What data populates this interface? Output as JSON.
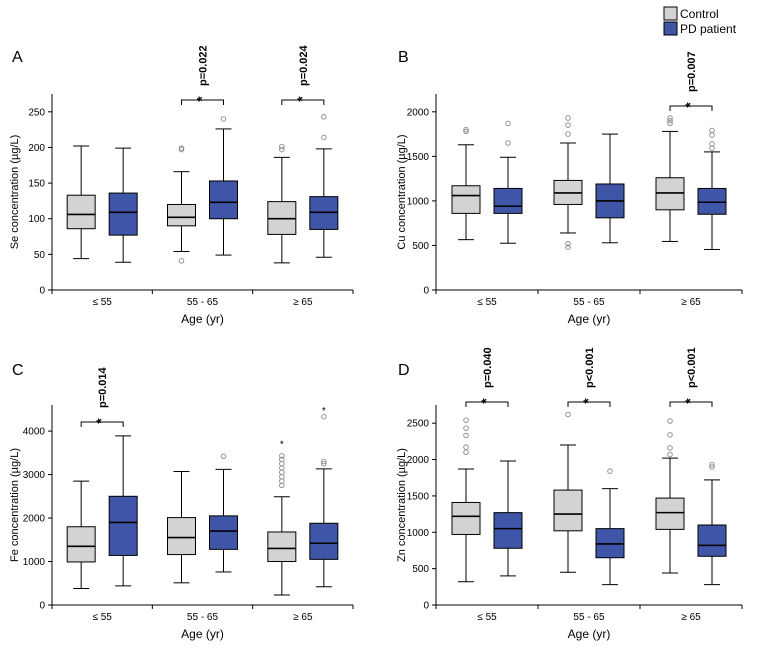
{
  "legend": {
    "items": [
      {
        "label": "Control",
        "color": "#d3d3d3"
      },
      {
        "label": "PD patient",
        "color": "#3f56a8"
      }
    ]
  },
  "colors": {
    "control": "#d3d3d3",
    "patient": "#3f56a8",
    "axis": "#000000",
    "outlier": "#888888"
  },
  "chart_data": [
    {
      "type": "boxplot",
      "panel": "A",
      "ylabel": "Se concentration (µg/L)",
      "xlabel": "Age (yr)",
      "ylim": [
        0,
        275
      ],
      "yticks": [
        0,
        50,
        100,
        150,
        200,
        250
      ],
      "categories": [
        "≤ 55",
        "55 - 65",
        "≥ 65"
      ],
      "series": [
        {
          "name": "Control",
          "boxes": [
            {
              "min": 44,
              "q1": 86,
              "median": 106,
              "q3": 133,
              "max": 202,
              "outliers": [],
              "extremes": []
            },
            {
              "min": 54,
              "q1": 90,
              "median": 102,
              "q3": 120,
              "max": 166,
              "outliers": [
                41,
                197,
                199
              ],
              "extremes": []
            },
            {
              "min": 38,
              "q1": 78,
              "median": 100,
              "q3": 124,
              "max": 186,
              "outliers": [
                197,
                201
              ],
              "extremes": []
            }
          ]
        },
        {
          "name": "PD patient",
          "boxes": [
            {
              "min": 39,
              "q1": 77,
              "median": 109,
              "q3": 136,
              "max": 199,
              "outliers": [],
              "extremes": []
            },
            {
              "min": 49,
              "q1": 100,
              "median": 123,
              "q3": 153,
              "max": 226,
              "outliers": [
                240
              ],
              "extremes": []
            },
            {
              "min": 46,
              "q1": 85,
              "median": 109,
              "q3": 131,
              "max": 198,
              "outliers": [
                214,
                243
              ],
              "extremes": []
            }
          ]
        }
      ],
      "annotations": [
        {
          "group": 1,
          "text": "p=0.022",
          "star": "*"
        },
        {
          "group": 2,
          "text": "p=0.024",
          "star": "*"
        }
      ]
    },
    {
      "type": "boxplot",
      "panel": "B",
      "ylabel": "Cu concentration (µg/L)",
      "xlabel": "Age (yr)",
      "ylim": [
        0,
        2200
      ],
      "yticks": [
        0,
        500,
        1000,
        1500,
        2000
      ],
      "categories": [
        "≤ 55",
        "55 - 65",
        "≥ 65"
      ],
      "series": [
        {
          "name": "Control",
          "boxes": [
            {
              "min": 565,
              "q1": 860,
              "median": 1060,
              "q3": 1170,
              "max": 1630,
              "outliers": [
                1780,
                1800
              ],
              "extremes": []
            },
            {
              "min": 640,
              "q1": 960,
              "median": 1090,
              "q3": 1230,
              "max": 1650,
              "outliers": [
                480,
                520,
                1750,
                1850,
                1930
              ],
              "extremes": []
            },
            {
              "min": 545,
              "q1": 900,
              "median": 1090,
              "q3": 1260,
              "max": 1780,
              "outliers": [
                1870,
                1900,
                1930
              ],
              "extremes": []
            }
          ]
        },
        {
          "name": "PD patient",
          "boxes": [
            {
              "min": 525,
              "q1": 860,
              "median": 940,
              "q3": 1140,
              "max": 1490,
              "outliers": [
                1650,
                1870
              ],
              "extremes": []
            },
            {
              "min": 530,
              "q1": 810,
              "median": 1000,
              "q3": 1190,
              "max": 1750,
              "outliers": [],
              "extremes": []
            },
            {
              "min": 455,
              "q1": 850,
              "median": 985,
              "q3": 1140,
              "max": 1550,
              "outliers": [
                1590,
                1640,
                1740,
                1790
              ],
              "extremes": []
            }
          ]
        }
      ],
      "annotations": [
        {
          "group": 2,
          "text": "p=0.007",
          "star": "*"
        }
      ]
    },
    {
      "type": "boxplot",
      "panel": "C",
      "ylabel": "Fe concentration (µg/L)",
      "xlabel": "Age (yr)",
      "ylim": [
        0,
        4600
      ],
      "yticks": [
        0,
        1000,
        2000,
        3000,
        4000
      ],
      "categories": [
        "≤ 55",
        "55 - 65",
        "≥ 65"
      ],
      "series": [
        {
          "name": "Control",
          "boxes": [
            {
              "min": 380,
              "q1": 990,
              "median": 1350,
              "q3": 1800,
              "max": 2850,
              "outliers": [],
              "extremes": []
            },
            {
              "min": 510,
              "q1": 1160,
              "median": 1550,
              "q3": 2010,
              "max": 3070,
              "outliers": [],
              "extremes": []
            },
            {
              "min": 230,
              "q1": 1000,
              "median": 1300,
              "q3": 1680,
              "max": 2490,
              "outliers": [
                2750,
                2850,
                2950,
                3050,
                3150,
                3250,
                3350,
                3430
              ],
              "extremes": [
                3710
              ]
            }
          ]
        },
        {
          "name": "PD patient",
          "boxes": [
            {
              "min": 440,
              "q1": 1140,
              "median": 1900,
              "q3": 2500,
              "max": 3890,
              "outliers": [],
              "extremes": []
            },
            {
              "min": 760,
              "q1": 1280,
              "median": 1700,
              "q3": 2050,
              "max": 3120,
              "outliers": [
                3420
              ],
              "extremes": []
            },
            {
              "min": 420,
              "q1": 1050,
              "median": 1420,
              "q3": 1880,
              "max": 3130,
              "outliers": [
                3250,
                3300,
                4330
              ],
              "extremes": [
                4480
              ]
            }
          ]
        }
      ],
      "annotations": [
        {
          "group": 0,
          "text": "p=0.014",
          "star": "*"
        }
      ]
    },
    {
      "type": "boxplot",
      "panel": "D",
      "ylabel": "Zn concentration (µg/L)",
      "xlabel": "Age (yr)",
      "ylim": [
        0,
        2750
      ],
      "yticks": [
        0,
        500,
        1000,
        1500,
        2000,
        2500
      ],
      "categories": [
        "≤ 55",
        "55 - 65",
        "≥ 65"
      ],
      "series": [
        {
          "name": "Control",
          "boxes": [
            {
              "min": 320,
              "q1": 970,
              "median": 1220,
              "q3": 1410,
              "max": 1870,
              "outliers": [
                2100,
                2170,
                2330,
                2430,
                2540
              ],
              "extremes": []
            },
            {
              "min": 450,
              "q1": 1020,
              "median": 1250,
              "q3": 1580,
              "max": 2200,
              "outliers": [
                2620
              ],
              "extremes": []
            },
            {
              "min": 440,
              "q1": 1040,
              "median": 1270,
              "q3": 1470,
              "max": 2020,
              "outliers": [
                2070,
                2160,
                2340,
                2530
              ],
              "extremes": []
            }
          ]
        },
        {
          "name": "PD patient",
          "boxes": [
            {
              "min": 400,
              "q1": 780,
              "median": 1050,
              "q3": 1270,
              "max": 1980,
              "outliers": [],
              "extremes": []
            },
            {
              "min": 280,
              "q1": 650,
              "median": 840,
              "q3": 1050,
              "max": 1600,
              "outliers": [
                1840
              ],
              "extremes": []
            },
            {
              "min": 280,
              "q1": 670,
              "median": 820,
              "q3": 1100,
              "max": 1720,
              "outliers": [
                1900,
                1930
              ],
              "extremes": []
            }
          ]
        }
      ],
      "annotations": [
        {
          "group": 0,
          "text": "p=0.040",
          "star": "*"
        },
        {
          "group": 1,
          "text": "p<0.001",
          "star": "*"
        },
        {
          "group": 2,
          "text": "p<0.001",
          "star": "*"
        }
      ]
    }
  ]
}
